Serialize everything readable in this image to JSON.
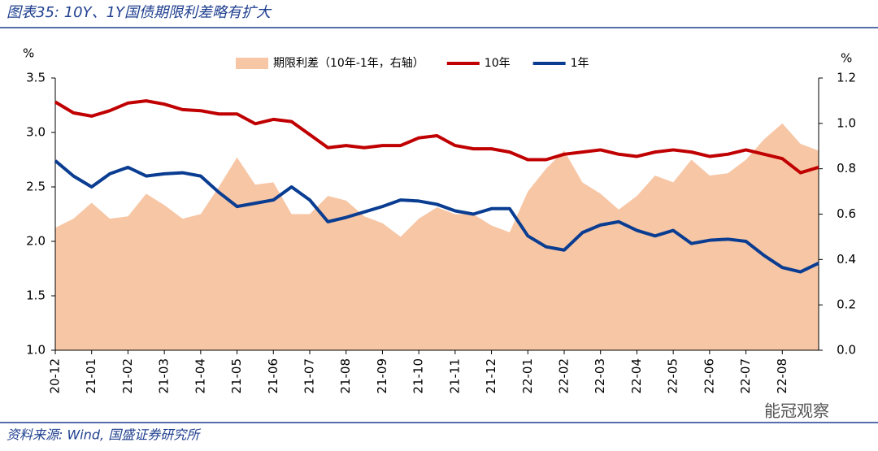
{
  "chart_data": {
    "type": "dual_axis_area_line",
    "title": "图表35: 10Y、1Y国债期限利差略有扩大",
    "source": "资料来源: Wind, 国盛证券研究所",
    "watermark": "能冠观察",
    "y_label": "%",
    "y2_label": "%",
    "categories": [
      "20-12",
      null,
      "21-01",
      null,
      "21-02",
      null,
      "21-03",
      null,
      "21-04",
      null,
      "21-05",
      null,
      "21-06",
      null,
      "21-07",
      null,
      "21-08",
      null,
      "21-09",
      null,
      "21-10",
      null,
      "21-11",
      null,
      "21-12",
      null,
      "22-01",
      null,
      "22-02",
      null,
      "22-03",
      null,
      "22-04",
      null,
      "22-05",
      null,
      "22-06",
      null,
      "22-07",
      null,
      "22-08",
      null,
      null
    ],
    "series": [
      {
        "name": "期限利差（10年-1年，右轴）",
        "kind": "area",
        "axis": "y2",
        "color": "#f7c6a5",
        "values": [
          0.54,
          0.58,
          0.65,
          0.58,
          0.59,
          0.69,
          0.64,
          0.58,
          0.6,
          0.72,
          0.85,
          0.73,
          0.74,
          0.6,
          0.6,
          0.68,
          0.66,
          0.59,
          0.56,
          0.5,
          0.58,
          0.63,
          0.6,
          0.6,
          0.55,
          0.52,
          0.7,
          0.8,
          0.88,
          0.74,
          0.69,
          0.62,
          0.68,
          0.77,
          0.74,
          0.84,
          0.77,
          0.78,
          0.84,
          0.93,
          1.0,
          0.91,
          0.88
        ]
      },
      {
        "name": "10年",
        "kind": "line",
        "axis": "y",
        "color": "#c00000",
        "values": [
          3.28,
          3.18,
          3.15,
          3.2,
          3.27,
          3.29,
          3.26,
          3.21,
          3.2,
          3.17,
          3.17,
          3.08,
          3.12,
          3.1,
          2.98,
          2.86,
          2.88,
          2.86,
          2.88,
          2.88,
          2.95,
          2.97,
          2.88,
          2.85,
          2.85,
          2.82,
          2.75,
          2.75,
          2.8,
          2.82,
          2.84,
          2.8,
          2.78,
          2.82,
          2.84,
          2.82,
          2.78,
          2.8,
          2.84,
          2.8,
          2.76,
          2.63,
          2.68
        ]
      },
      {
        "name": "1年",
        "kind": "line",
        "axis": "y",
        "color": "#0a3d91",
        "values": [
          2.74,
          2.6,
          2.5,
          2.62,
          2.68,
          2.6,
          2.62,
          2.63,
          2.6,
          2.45,
          2.32,
          2.35,
          2.38,
          2.5,
          2.38,
          2.18,
          2.22,
          2.27,
          2.32,
          2.38,
          2.37,
          2.34,
          2.28,
          2.25,
          2.3,
          2.3,
          2.05,
          1.95,
          1.92,
          2.08,
          2.15,
          2.18,
          2.1,
          2.05,
          2.1,
          1.98,
          2.01,
          2.02,
          2.0,
          1.87,
          1.76,
          1.72,
          1.8
        ]
      }
    ],
    "ylim": [
      1.0,
      3.5
    ],
    "yticks": [
      {
        "value": 1,
        "label": "1.0"
      },
      1.5,
      {
        "value": 2,
        "label": "2.0"
      },
      2.5,
      {
        "value": 3,
        "label": "3.0"
      },
      3.5
    ],
    "y2lim": [
      0,
      1.2
    ],
    "y2ticks": [
      {
        "value": 0,
        "label": "0.0"
      },
      0.2,
      0.4,
      0.6,
      0.8,
      {
        "value": 1,
        "label": "1.0"
      },
      1.2
    ],
    "legend": "top"
  }
}
